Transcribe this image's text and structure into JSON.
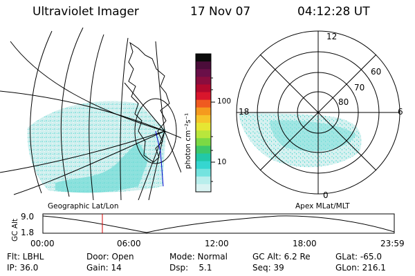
{
  "header": {
    "title": "Ultraviolet Imager",
    "date": "17 Nov 07",
    "time": "04:12:28 UT"
  },
  "left_panel": {
    "label": "Geographic Lat/Lon"
  },
  "colorbar": {
    "unit_label": "photon cm⁻²s⁻¹",
    "ticks": [
      "100",
      "10"
    ],
    "colors": [
      "#0b0b0b",
      "#4b0d3a",
      "#6a0f48",
      "#8a0d3e",
      "#b2092d",
      "#d9162c",
      "#ef5a20",
      "#f59a1e",
      "#f6c52a",
      "#e6e633",
      "#b9e63c",
      "#7cd944",
      "#3dc86a",
      "#22c8a8",
      "#35d6d0",
      "#74e3df",
      "#b8eeec",
      "#d9f3f2"
    ]
  },
  "right_panel": {
    "label": "Apex MLat/MLT",
    "mlt_labels": [
      "12",
      "18",
      "6",
      "0"
    ],
    "lat_labels": [
      "60",
      "70",
      "80"
    ]
  },
  "alt_plot": {
    "ylabel": "GC Alt",
    "yticks": [
      "9.0",
      "1.8"
    ],
    "xticks": [
      "00:00",
      "06:00",
      "12:00",
      "18:00",
      "23:59"
    ],
    "cursor_time": "04:12:28"
  },
  "info": {
    "row1": [
      "Flt: LBHL",
      "Door: Open",
      "Mode: Normal",
      "GC Alt: 6.2 Re",
      "GLat: -65.0"
    ],
    "row2": [
      "IP: 36.0",
      "Gain: 14",
      "Dsp:    5.1",
      "Seq: 39",
      "GLon: 216.1"
    ]
  },
  "colors": {
    "aurora_light": "#d9f0ee",
    "aurora_mid": "#9fe7e3",
    "aurora_strong": "#3fd8d4",
    "cursor": "#d00000",
    "grid": "#000000",
    "track": "#0000cc"
  }
}
